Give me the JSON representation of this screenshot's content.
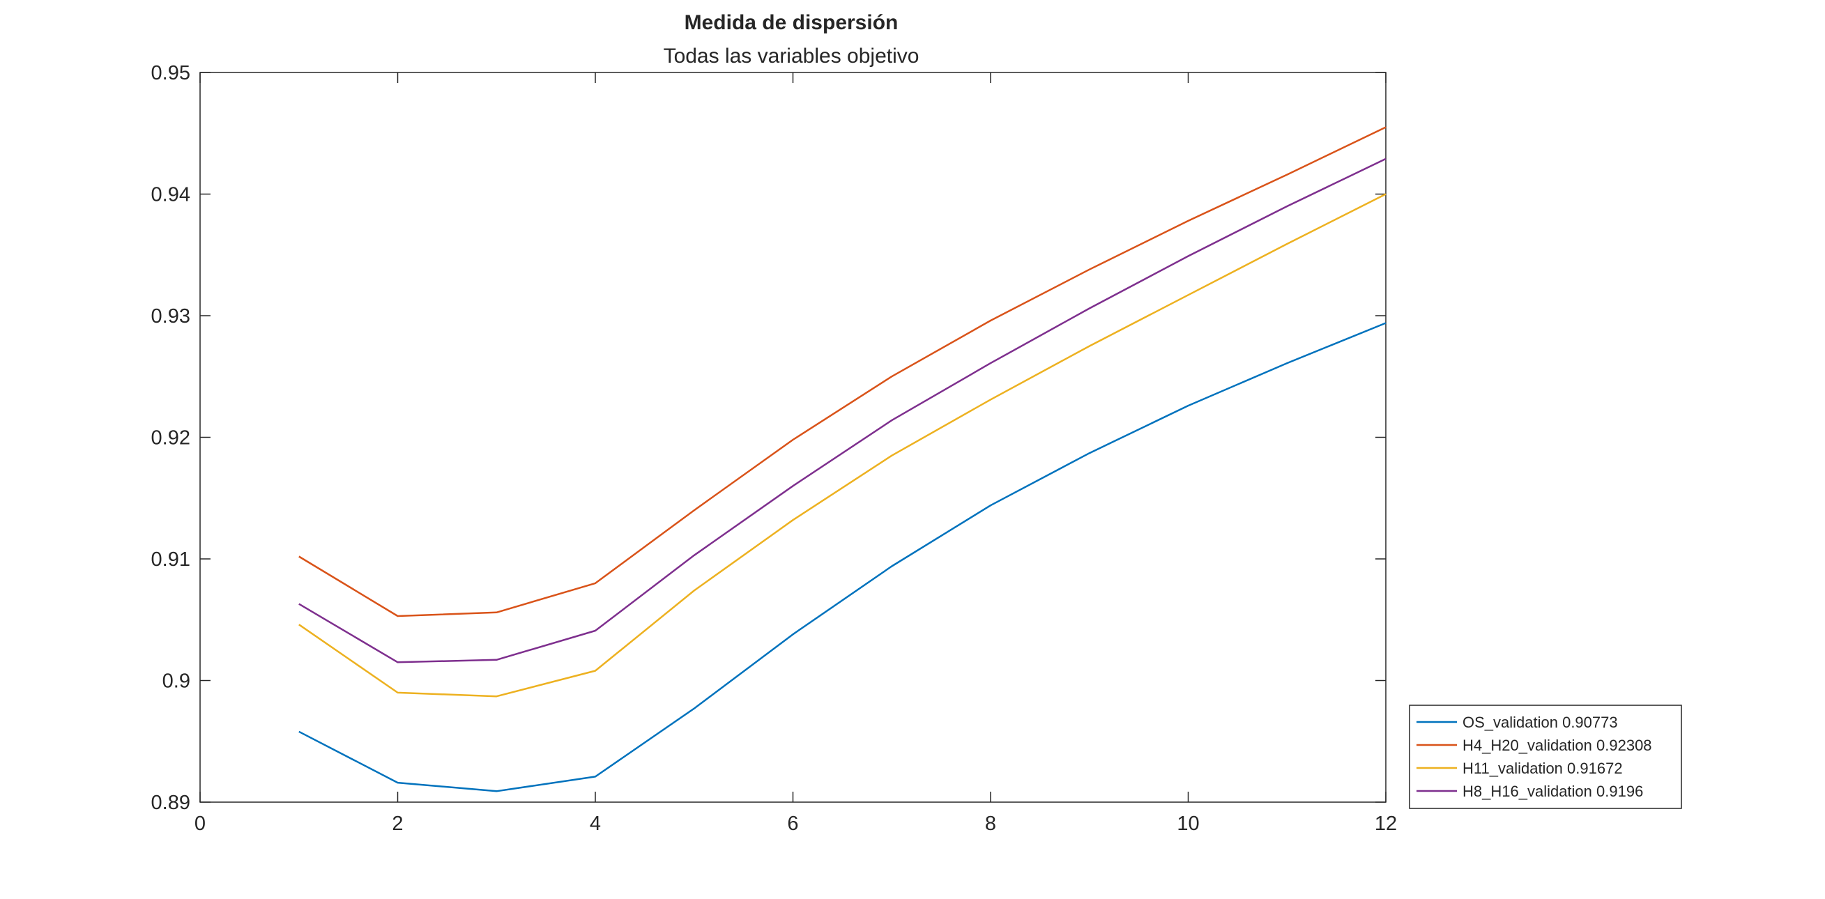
{
  "chart_data": {
    "type": "line",
    "title": "Medida de dispersión",
    "subtitle": "Todas las variables objetivo",
    "xlabel": "",
    "ylabel": "",
    "xlim": [
      0,
      12
    ],
    "ylim": [
      0.89,
      0.95
    ],
    "xticks": [
      0,
      2,
      4,
      6,
      8,
      10,
      12
    ],
    "xtick_labels": [
      "0",
      "2",
      "4",
      "6",
      "8",
      "10",
      "12"
    ],
    "yticks": [
      0.89,
      0.9,
      0.91,
      0.92,
      0.93,
      0.94,
      0.95
    ],
    "ytick_labels": [
      "0.89",
      "0.9",
      "0.91",
      "0.92",
      "0.93",
      "0.94",
      "0.95"
    ],
    "grid": false,
    "legend_position": "outside-bottom-right",
    "x": [
      1,
      2,
      3,
      4,
      5,
      6,
      7,
      8,
      9,
      10,
      11,
      12
    ],
    "series": [
      {
        "name": "OS_validation 0.90773",
        "color": "#0072BD",
        "values": [
          0.8958,
          0.8916,
          0.8909,
          0.8921,
          0.8977,
          0.9038,
          0.9094,
          0.9144,
          0.9187,
          0.9226,
          0.9261,
          0.9294
        ]
      },
      {
        "name": "H4_H20_validation 0.92308",
        "color": "#D95319",
        "values": [
          0.9102,
          0.9053,
          0.9056,
          0.908,
          0.914,
          0.9198,
          0.925,
          0.9296,
          0.9338,
          0.9378,
          0.9416,
          0.9455
        ]
      },
      {
        "name": "H11_validation 0.91672",
        "color": "#EDB120",
        "values": [
          0.9046,
          0.899,
          0.8987,
          0.9008,
          0.9074,
          0.9132,
          0.9185,
          0.9231,
          0.9275,
          0.9317,
          0.9359,
          0.94
        ]
      },
      {
        "name": "H8_H16_validation 0.9196",
        "color": "#7E2F8E",
        "values": [
          0.9063,
          0.9015,
          0.9017,
          0.9041,
          0.9103,
          0.916,
          0.9214,
          0.9261,
          0.9306,
          0.9349,
          0.939,
          0.9429
        ]
      }
    ]
  }
}
